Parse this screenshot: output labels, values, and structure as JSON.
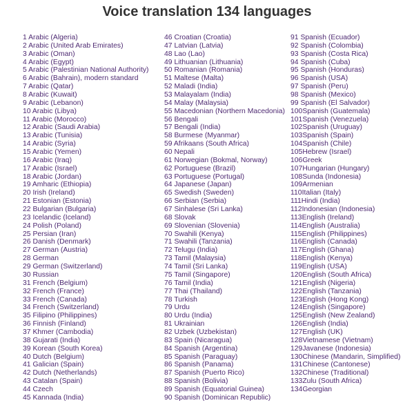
{
  "title": "Voice translation 134 languages",
  "columns": [
    [
      "1 Arabic (Algeria)",
      "2 Arabic (United Arab Emirates)",
      "3 Arabic (Oman)",
      "4 Arabic (Egypt)",
      "5 Arabic (Palestinian National Authority)",
      "6 Arabic (Bahrain), modern standard",
      "7 Arabic (Qatar)",
      "8 Arabic (Kuwait)",
      "9 Arabic (Lebanon)",
      "10 Arabic (Libya)",
      "11 Arabic (Morocco)",
      "12 Arabic (Saudi Arabia)",
      "13 Arabic (Tunisia)",
      "14 Arabic (Syria)",
      "15 Arabic (Yemen)",
      "16 Arabic (Iraq)",
      "17 Arabic (Israel)",
      "18 Arabic (Jordan)",
      "19 Amharic (Ethiopia)",
      "20 Irish (Ireland)",
      "21 Estonian (Estonia)",
      "22 Bulgarian (Bulgaria)",
      "23 Icelandic (Iceland)",
      "24 Polish (Poland)",
      "25 Persian (Iran)",
      "26 Danish (Denmark)",
      "27 German (Austria)",
      "28 German",
      "29 German (Switzerland)",
      "30 Russian",
      "31 French (Belgium)",
      "32 French (France)",
      "33 French (Canada)",
      "34 French (Switzerland)",
      "35 Filipino (Philippines)",
      "36 Finnish (Finland)",
      "37 Khmer (Cambodia)",
      "38 Gujarati (India)",
      "39 Korean (South Korea)",
      "40 Dutch (Belgium)",
      "41 Galician (Spain)",
      "42 Dutch (Netherlands)",
      "43 Catalan (Spain)",
      "44 Czech",
      "45 Kannada (India)"
    ],
    [
      "46 Croatian (Croatia)",
      "47 Latvian (Latvia)",
      "48 Lao (Lao)",
      "49 Lithuanian (Lithuania)",
      "50 Romanian (Romania)",
      "51 Maltese (Malta)",
      "52 Maladi (India)",
      "53 Malayalam (India)",
      "54 Malay (Malaysia)",
      "55 Macedonian (Northern Macedonia)",
      "56 Bengali",
      "57 Bengali (India)",
      "58 Burmese (Myanmar)",
      "59 Afrikaans (South Africa)",
      "60 Nepali",
      "61 Norwegian (Bokmal, Norway)",
      "62 Portuguese (Brazil)",
      "63 Portuguese (Portugal)",
      "64 Japanese (Japan)",
      "65 Swedish (Sweden)",
      "66 Serbian (Serbia)",
      "67 Sinhalese (Sri Lanka)",
      "68 Slovak",
      "69 Slovenian (Slovenia)",
      "70 Swahili (Kenya)",
      "71 Swahili (Tanzania)",
      "72 Telugu (India)",
      "73 Tamil (Malaysia)",
      "74 Tamil (Sri Lanka)",
      "75 Tamil (Singapore)",
      "76 Tamil (India)",
      "77 Thai (Thailand)",
      "78 Turkish",
      "79 Urdu",
      "80 Urdu (India)",
      "81 Ukrainian",
      "82 Uzbek (Uzbekistan)",
      "83 Spain (Nicaragua)",
      "84 Spanish (Argentina)",
      "85 Spanish (Paraguay)",
      "86 Spanish (Panama)",
      "87 Spanish (Puerto Rico)",
      "88 Spanish (Bolivia)",
      "89 Spanish (Equatorial Guinea)",
      "90 Spanish (Dominican Republic)"
    ],
    [
      "91 Spanish (Ecuador)",
      "92 Spanish (Colombia)",
      "93 Spanish (Costa Rica)",
      "94 Spanish (Cuba)",
      "95 Spanish (Honduras)",
      "96 Spanish (USA)",
      "97 Spanish (Peru)",
      "98 Spanish (Mexico)",
      "99 Spanish (El Salvador)",
      "100Spanish (Guatemala)",
      "101Spanish (Venezuela)",
      "102Spanish (Uruguay)",
      "103Spanish (Spain)",
      "104Spanish (Chile)",
      "105Hebrew (Israel)",
      "106Greek",
      "107Hungarian (Hungary)",
      "108Sunda (Indonesia)",
      "109Armenian",
      "110Italian (Italy)",
      "111Hindi (India)",
      "112Indonesian (Indonesia)",
      "113English (Ireland)",
      "114English (Australia)",
      "115English (Philippines)",
      "116English (Canada)",
      "117English (Ghana)",
      "118English (Kenya)",
      "119English (USA)",
      "120English (South Africa)",
      "121English (Nigeria)",
      "122English (Tanzania)",
      "123English (Hong Kong)",
      "124English (Singapore)",
      "125English (New Zealand)",
      "126English (India)",
      "127English (UK)",
      "128Vietnamese (Vietnam)",
      "129Javanese (Indonesia)",
      "130Chinese (Mandarin, Simplified)",
      "131Chinese (Cantonese)",
      "132Chinese (Traditional)",
      "133Zulu (South Africa)",
      "134Georgian"
    ]
  ]
}
